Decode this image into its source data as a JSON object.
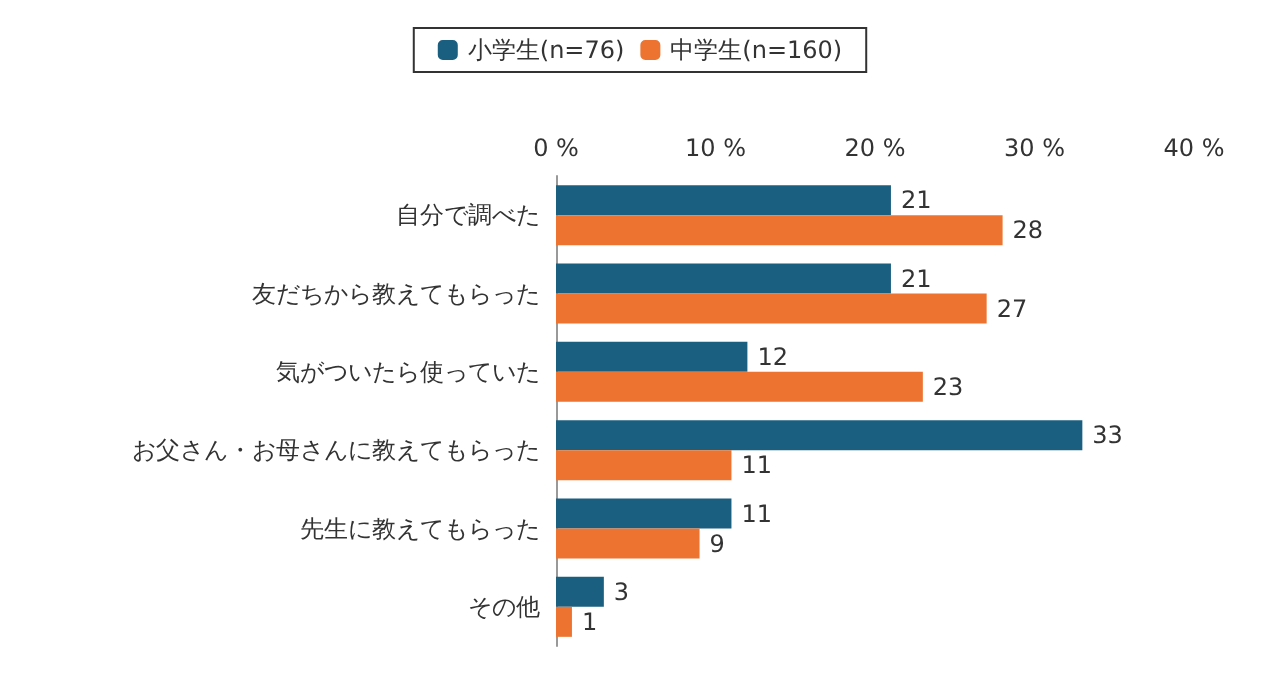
{
  "chart_data": {
    "type": "bar",
    "orientation": "horizontal",
    "categories": [
      "自分で調べた",
      "友だちから教えてもらった",
      "気がついたら使っていた",
      "お父さん・お母さんに教えてもらった",
      "先生に教えてもらった",
      "その他"
    ],
    "series": [
      {
        "name": "小学生(n=76)",
        "color": "#1b5f80",
        "values": [
          21,
          21,
          12,
          33,
          11,
          3
        ]
      },
      {
        "name": "中学生(n=160)",
        "color": "#ed7430",
        "values": [
          28,
          27,
          23,
          11,
          9,
          1
        ]
      }
    ],
    "xlim": [
      0,
      40
    ],
    "xticks": [
      {
        "value": 0,
        "label": "0 %"
      },
      {
        "value": 10,
        "label": "10 %"
      },
      {
        "value": 20,
        "label": "20 %"
      },
      {
        "value": 30,
        "label": "30 %"
      },
      {
        "value": 40,
        "label": "40 %"
      }
    ],
    "data_labels": true,
    "legend": "top",
    "grid": false
  }
}
